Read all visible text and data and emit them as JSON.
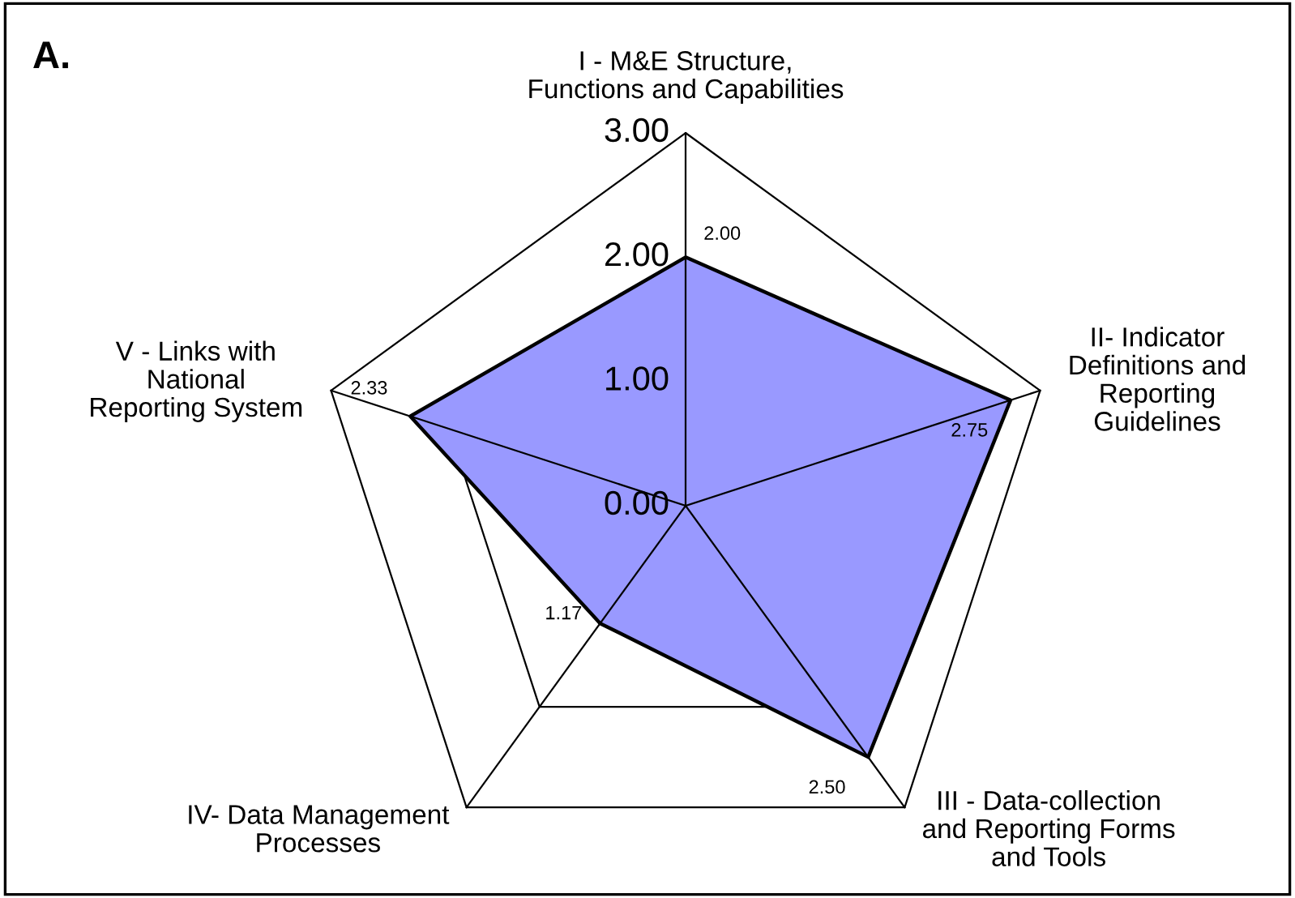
{
  "chart_data": {
    "type": "radar",
    "title": "A.",
    "categories": [
      "I - M&E Structure,\nFunctions and Capabilities",
      "II- Indicator\nDefinitions and\nReporting\nGuidelines",
      "III - Data-collection\nand Reporting Forms\nand Tools",
      "IV- Data Management\nProcesses",
      "V - Links with\nNational\nReporting System"
    ],
    "series": [
      {
        "color": "#9999ff",
        "values": [
          2.0,
          2.75,
          2.5,
          1.17,
          2.33
        ],
        "value_labels": [
          "2.00",
          "2.75",
          "2.50",
          "1.17",
          "2.33"
        ]
      }
    ],
    "ylim": [
      0,
      3
    ],
    "yticks": [
      {
        "value": 0,
        "label": "0.00"
      },
      {
        "value": 1,
        "label": "1.00"
      },
      {
        "value": 2,
        "label": "2.00"
      },
      {
        "value": 3,
        "label": "3.00"
      }
    ]
  }
}
